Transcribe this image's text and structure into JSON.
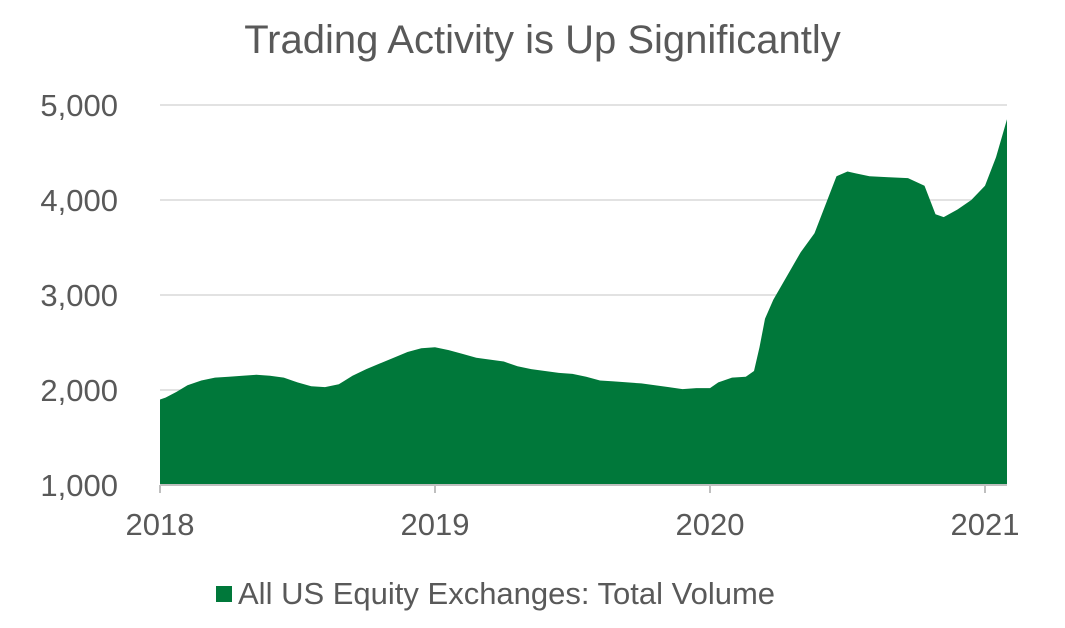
{
  "chart_data": {
    "type": "area",
    "title": "Trading Activity is Up Significantly",
    "xlabel": "",
    "ylabel": "",
    "ylim": [
      1000,
      5000
    ],
    "yticks": [
      1000,
      2000,
      3000,
      4000,
      5000
    ],
    "ytick_labels": [
      "1,000",
      "2,000",
      "3,000",
      "4,000",
      "5,000"
    ],
    "xlim": [
      2018.0,
      2021.08
    ],
    "xticks": [
      2018,
      2019,
      2020,
      2021
    ],
    "xtick_labels": [
      "2018",
      "2019",
      "2020",
      "2021"
    ],
    "grid": true,
    "legend_position": "bottom-center",
    "series": [
      {
        "name": "All US Equity Exchanges: Total Volume",
        "color": "#00783A",
        "x": [
          2018.0,
          2018.02,
          2018.06,
          2018.1,
          2018.15,
          2018.2,
          2018.25,
          2018.3,
          2018.35,
          2018.4,
          2018.45,
          2018.5,
          2018.55,
          2018.6,
          2018.65,
          2018.7,
          2018.75,
          2018.8,
          2018.85,
          2018.9,
          2018.95,
          2019.0,
          2019.05,
          2019.1,
          2019.15,
          2019.2,
          2019.25,
          2019.3,
          2019.35,
          2019.4,
          2019.45,
          2019.5,
          2019.55,
          2019.6,
          2019.65,
          2019.7,
          2019.75,
          2019.8,
          2019.85,
          2019.9,
          2019.95,
          2020.0,
          2020.03,
          2020.08,
          2020.13,
          2020.16,
          2020.18,
          2020.2,
          2020.23,
          2020.28,
          2020.33,
          2020.38,
          2020.42,
          2020.46,
          2020.5,
          2020.53,
          2020.58,
          2020.65,
          2020.72,
          2020.78,
          2020.82,
          2020.85,
          2020.9,
          2020.95,
          2021.0,
          2021.04,
          2021.08
        ],
        "values": [
          1900,
          1920,
          1980,
          2050,
          2100,
          2130,
          2140,
          2150,
          2160,
          2150,
          2130,
          2080,
          2040,
          2030,
          2060,
          2150,
          2220,
          2280,
          2340,
          2400,
          2440,
          2450,
          2420,
          2380,
          2340,
          2320,
          2300,
          2250,
          2220,
          2200,
          2180,
          2170,
          2140,
          2100,
          2090,
          2080,
          2070,
          2050,
          2030,
          2010,
          2020,
          2020,
          2080,
          2130,
          2140,
          2200,
          2450,
          2750,
          2950,
          3200,
          3450,
          3650,
          3950,
          4250,
          4300,
          4280,
          4250,
          4240,
          4230,
          4150,
          3850,
          3820,
          3900,
          4000,
          4150,
          4450,
          4850
        ]
      }
    ]
  }
}
